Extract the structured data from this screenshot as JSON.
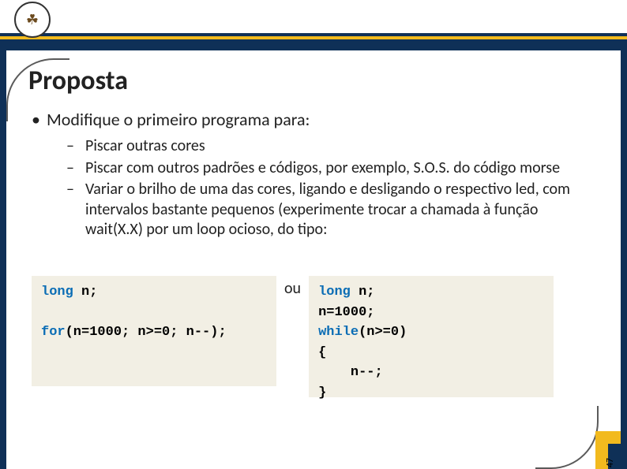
{
  "colors": {
    "navy": "#0f3057",
    "gold": "#f2ba1e",
    "code_bg": "#f2efe4",
    "keyword": "#0b6db5",
    "text": "#222222"
  },
  "title": "Proposta",
  "main_bullet": "Modifique o primeiro programa para:",
  "sub_bullets": [
    "Piscar outras cores",
    "Piscar com outros padrões e códigos, por exemplo, S.O.S. do código morse",
    "Variar o brilho de uma das cores, ligando e desligando o respectivo led, com intervalos bastante pequenos (experimente trocar a chamada à função wait(X.X) por um loop ocioso, do tipo:"
  ],
  "or_label": "ou",
  "code_left": {
    "line1_kw": "long",
    "line1_rest": " n;",
    "line2_kw": "for",
    "line2_rest": "(n=1000; n>=0; n--);"
  },
  "code_right": {
    "l1_kw": "long",
    "l1_rest": " n;",
    "l2": "n=1000;",
    "l3_kw": "while",
    "l3_rest": "(n>=0)",
    "l4": "{",
    "l5": "    n--;",
    "l6": "}"
  },
  "page_number": "47"
}
